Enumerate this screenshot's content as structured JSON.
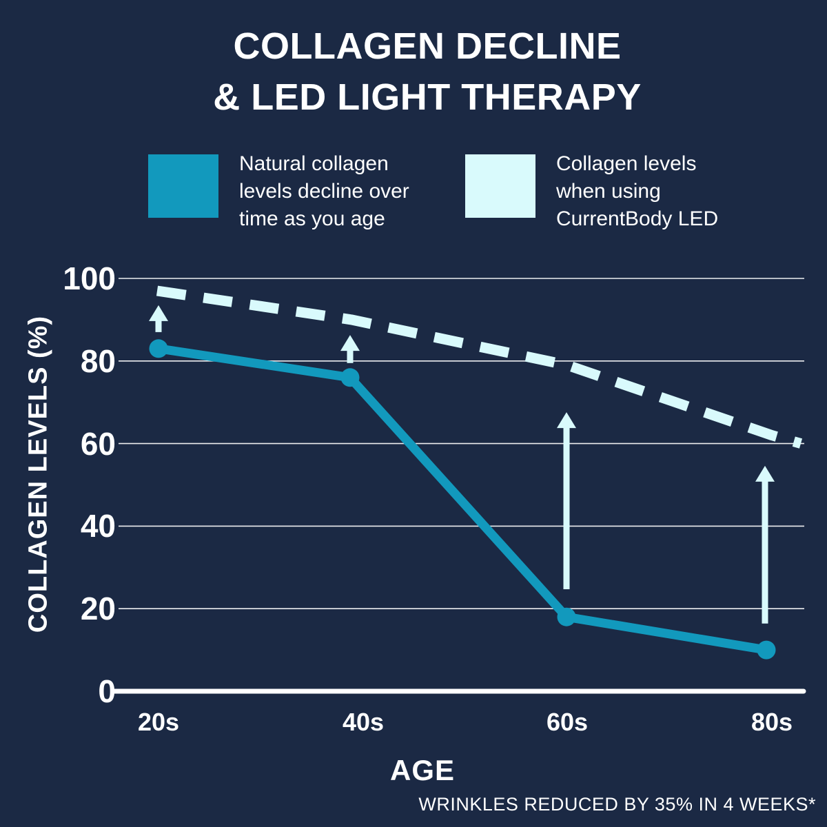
{
  "page": {
    "title": "COLLAGEN DECLINE\n& LED LIGHT THERAPY",
    "footnote": "WRINKLES REDUCED BY 35% IN 4 WEEKS*"
  },
  "colors": {
    "background": "#1B2944",
    "teal": "#1299BD",
    "light_cyan": "#D9FAFC",
    "text": "#FFFFFF",
    "gridline": "#FFFFFF"
  },
  "legend": {
    "items": [
      {
        "swatch": "teal",
        "label": "Natural collagen\nlevels decline over\ntime as you age"
      },
      {
        "swatch": "light_cyan",
        "label": "Collagen levels\nwhen using\nCurrentBody LED"
      }
    ]
  },
  "chart_data": {
    "type": "line",
    "categories": [
      "20s",
      "40s",
      "60s",
      "80s"
    ],
    "series": [
      {
        "name": "Natural collagen levels decline over time as you age",
        "style": "solid",
        "color_key": "teal",
        "markers": true,
        "values": [
          83,
          76,
          18,
          10
        ]
      },
      {
        "name": "Collagen levels when using CurrentBody LED",
        "style": "dashed",
        "color_key": "light_cyan",
        "markers": false,
        "values": [
          97,
          90,
          79,
          62
        ],
        "end_value": 60
      }
    ],
    "xlabel": "AGE",
    "ylabel": "COLLAGEN LEVELS (%)",
    "y_ticks": [
      100,
      80,
      60,
      40,
      20,
      0
    ],
    "ylim": [
      0,
      100
    ],
    "grid": true,
    "legend_position": "top",
    "annotations": [
      {
        "type": "up-arrow",
        "category": "20s",
        "from": 87,
        "to": 93.5
      },
      {
        "type": "up-arrow",
        "category": "40s",
        "from": 79.5,
        "to": 86.3
      },
      {
        "type": "up-arrow",
        "category": "60s",
        "from": 24.7,
        "to": 67.6
      },
      {
        "type": "up-arrow",
        "category": "80s",
        "from": 16.4,
        "to": 54.6
      }
    ]
  }
}
